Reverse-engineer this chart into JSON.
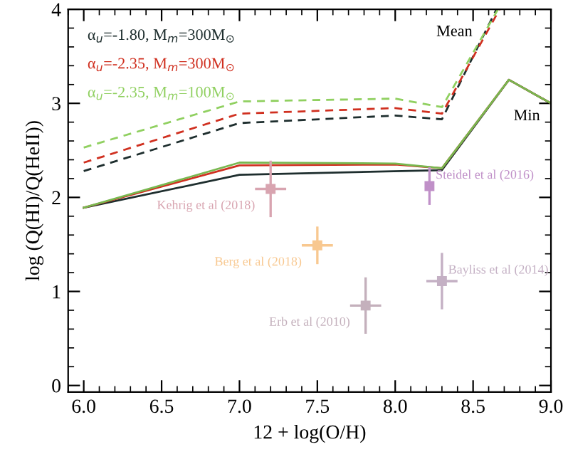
{
  "chart_data": {
    "type": "line",
    "xlabel": "12 + log(O/H)",
    "ylabel": "log (Q(HI)/Q(HeII))",
    "xlim": [
      5.9,
      9.0
    ],
    "ylim": [
      -0.07,
      4
    ],
    "xticks": [
      {
        "value": 6.0,
        "label": "6.0"
      },
      {
        "value": 6.5,
        "label": "6.5"
      },
      {
        "value": 7.0,
        "label": "7.0"
      },
      {
        "value": 7.5,
        "label": "7.5"
      },
      {
        "value": 8.0,
        "label": "8.0"
      },
      {
        "value": 8.5,
        "label": "8.5"
      },
      {
        "value": 9.0,
        "label": "9.0"
      }
    ],
    "yticks": [
      0,
      1,
      2,
      3,
      4
    ],
    "grid": false,
    "legend": "top left",
    "series": [
      {
        "name": "α$_{u}$=-1.80, M$_{m}$=300M$_{⊙}$",
        "color": "#1e2e2e",
        "line_style": "dashed",
        "x": [
          6.0,
          7.0,
          8.0,
          8.3,
          8.65
        ],
        "values": [
          2.28,
          2.79,
          2.87,
          2.83,
          4.0
        ]
      },
      {
        "name": "α$_{u}$=-2.35, M$_{m}$=300M$_{⊙}$",
        "color": "#d03020",
        "line_style": "dashed",
        "x": [
          6.0,
          7.0,
          8.0,
          8.3,
          8.67
        ],
        "values": [
          2.37,
          2.89,
          2.95,
          2.89,
          4.0
        ]
      },
      {
        "name": "α$_{u}$=-2.35, M$_{m}$=100M$_{⊙}$",
        "color": "#90d060",
        "line_style": "dashed",
        "x": [
          6.0,
          7.0,
          8.0,
          8.3,
          8.66
        ],
        "values": [
          2.53,
          3.02,
          3.05,
          2.96,
          4.0
        ]
      },
      {
        "color": "#1e2e2e",
        "line_style": "solid",
        "x": [
          6.0,
          7.0,
          8.3,
          8.73,
          9.0
        ],
        "values": [
          1.89,
          2.24,
          2.29,
          3.25,
          3.0
        ]
      },
      {
        "color": "#d03020",
        "line_style": "solid",
        "x": [
          6.0,
          7.0,
          8.0,
          8.3,
          8.73,
          9.0
        ],
        "values": [
          1.89,
          2.34,
          2.35,
          2.31,
          3.25,
          3.0
        ]
      },
      {
        "color": "#78b850",
        "line_style": "solid",
        "x": [
          6.0,
          7.0,
          8.0,
          8.3,
          8.73,
          9.0
        ],
        "values": [
          1.89,
          2.37,
          2.36,
          2.31,
          3.25,
          3.0
        ]
      },
      {
        "type": "scatter",
        "name": "Kehrig et al (2018)",
        "color": "#d8a4b0",
        "marker": "square",
        "x": [
          7.2
        ],
        "values": [
          2.09
        ],
        "errors": [
          0.3
        ],
        "xerrors": [
          0.1
        ]
      },
      {
        "type": "scatter",
        "name": "Steidel et al (2016)",
        "color": "#c090c8",
        "marker": "square",
        "x": [
          8.22
        ],
        "values": [
          2.12
        ],
        "errors": [
          0.2
        ],
        "xerrors": [
          0.0
        ]
      },
      {
        "type": "scatter",
        "name": "Berg et al (2018)",
        "color": "#f8c890",
        "marker": "square",
        "x": [
          7.5
        ],
        "values": [
          1.49
        ],
        "errors": [
          0.2
        ],
        "xerrors": [
          0.1
        ]
      },
      {
        "type": "scatter",
        "name": "Erb et al (2010)",
        "color": "#c4b0bc",
        "marker": "square",
        "x": [
          7.81
        ],
        "values": [
          0.85
        ],
        "errors": [
          0.3
        ],
        "xerrors": [
          0.1
        ]
      },
      {
        "type": "scatter",
        "name": "Bayliss et al (2014)",
        "color": "#c4b0c4",
        "marker": "square",
        "x": [
          8.3
        ],
        "values": [
          1.11
        ],
        "errors": [
          0.3
        ],
        "xerrors": [
          0.1
        ]
      }
    ],
    "annotations": [
      "Mean",
      "Min"
    ]
  }
}
